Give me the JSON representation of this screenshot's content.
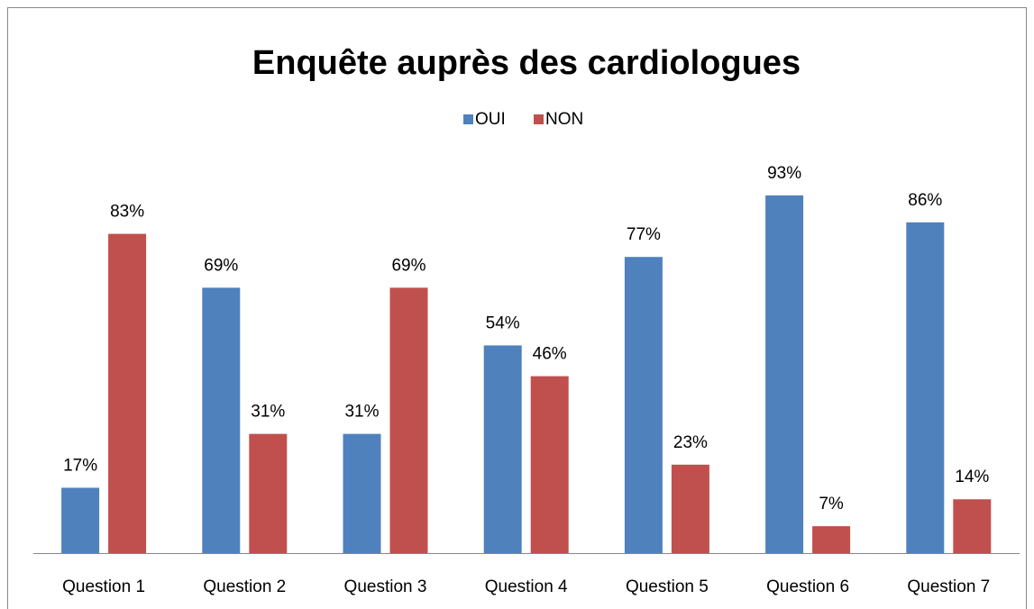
{
  "chart_data": {
    "type": "bar",
    "title": "Enquête auprès des cardiologues",
    "categories": [
      "Question 1",
      "Question 2",
      "Question 3",
      "Question 4",
      "Question 5",
      "Question 6",
      "Question 7"
    ],
    "series": [
      {
        "name": "OUI",
        "color": "#4f81bd",
        "values": [
          17,
          69,
          31,
          54,
          77,
          93,
          86
        ],
        "value_labels": [
          "17%",
          "69%",
          "31%",
          "54%",
          "77%",
          "93%",
          "86%"
        ]
      },
      {
        "name": "NON",
        "color": "#c0504d",
        "values": [
          83,
          31,
          69,
          46,
          23,
          7,
          14
        ],
        "value_labels": [
          "83%",
          "31%",
          "69%",
          "46%",
          "23%",
          "7%",
          "14%"
        ]
      }
    ],
    "legend": "top"
  }
}
